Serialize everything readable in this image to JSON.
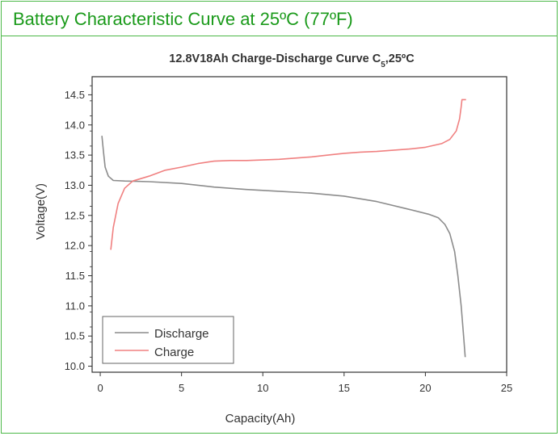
{
  "header": {
    "title": "Battery Characteristic Curve at 25ºC (77ºF)"
  },
  "colors": {
    "accent": "#4cb848",
    "header_text": "#1a9a1a",
    "discharge": "#8c8c8c",
    "charge": "#f08080"
  },
  "chart_data": {
    "type": "line",
    "title_main": "12.8V18Ah Charge-Discharge Curve C",
    "title_sub": "5",
    "title_tail": ",25ºC",
    "xlabel": "Capacity(Ah)",
    "ylabel": "Voltage(V)",
    "xlim": [
      -0.5,
      25
    ],
    "ylim": [
      9.9,
      14.8
    ],
    "xticks": [
      0,
      5,
      10,
      15,
      20,
      25
    ],
    "yticks": [
      10.0,
      10.5,
      11.0,
      11.5,
      12.0,
      12.5,
      13.0,
      13.5,
      14.0,
      14.5
    ],
    "grid": false,
    "legend_position": "bottom-left",
    "series": [
      {
        "name": "Discharge",
        "color": "#8c8c8c",
        "points": [
          [
            0.1,
            13.82
          ],
          [
            0.2,
            13.55
          ],
          [
            0.3,
            13.3
          ],
          [
            0.5,
            13.15
          ],
          [
            0.8,
            13.08
          ],
          [
            1.5,
            13.07
          ],
          [
            3,
            13.06
          ],
          [
            5,
            13.03
          ],
          [
            7,
            12.97
          ],
          [
            9,
            12.93
          ],
          [
            11,
            12.9
          ],
          [
            13,
            12.87
          ],
          [
            15,
            12.82
          ],
          [
            17,
            12.73
          ],
          [
            19,
            12.6
          ],
          [
            20.2,
            12.52
          ],
          [
            20.8,
            12.46
          ],
          [
            21.2,
            12.35
          ],
          [
            21.5,
            12.2
          ],
          [
            21.8,
            11.9
          ],
          [
            22.0,
            11.5
          ],
          [
            22.2,
            11.0
          ],
          [
            22.35,
            10.5
          ],
          [
            22.45,
            10.15
          ]
        ]
      },
      {
        "name": "Charge",
        "color": "#f08080",
        "points": [
          [
            0.65,
            11.93
          ],
          [
            0.8,
            12.3
          ],
          [
            1.1,
            12.7
          ],
          [
            1.5,
            12.95
          ],
          [
            2,
            13.07
          ],
          [
            3,
            13.15
          ],
          [
            4,
            13.25
          ],
          [
            5,
            13.3
          ],
          [
            6,
            13.36
          ],
          [
            7,
            13.4
          ],
          [
            8,
            13.41
          ],
          [
            9,
            13.41
          ],
          [
            10,
            13.42
          ],
          [
            11,
            13.43
          ],
          [
            12,
            13.45
          ],
          [
            13,
            13.47
          ],
          [
            14,
            13.5
          ],
          [
            15,
            13.53
          ],
          [
            16,
            13.55
          ],
          [
            17,
            13.56
          ],
          [
            18,
            13.58
          ],
          [
            19,
            13.6
          ],
          [
            20,
            13.63
          ],
          [
            21,
            13.69
          ],
          [
            21.5,
            13.76
          ],
          [
            21.9,
            13.9
          ],
          [
            22.1,
            14.1
          ],
          [
            22.2,
            14.3
          ],
          [
            22.25,
            14.42
          ],
          [
            22.5,
            14.42
          ]
        ]
      }
    ]
  }
}
